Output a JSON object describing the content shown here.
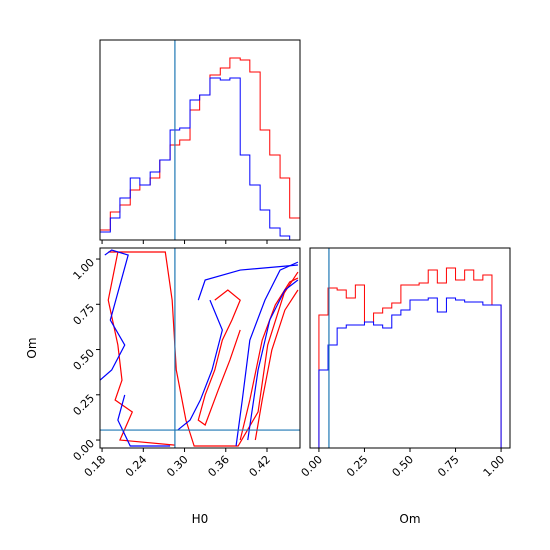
{
  "chart_data": [
    {
      "type": "histogram",
      "xlim": [
        0.177,
        0.468
      ],
      "xticks": [
        0.18,
        0.24,
        0.3,
        0.36,
        0.42
      ],
      "tick_labels": false,
      "ylim": [
        0,
        1
      ],
      "bins": [
        0.177,
        0.192,
        0.206,
        0.221,
        0.235,
        0.25,
        0.264,
        0.279,
        0.293,
        0.308,
        0.322,
        0.337,
        0.352,
        0.366,
        0.381,
        0.395,
        0.41,
        0.424,
        0.439,
        0.453,
        0.468
      ],
      "series": [
        {
          "color": "#ff0000",
          "values": [
            0.05,
            0.14,
            0.175,
            0.25,
            0.275,
            0.31,
            0.4,
            0.475,
            0.5,
            0.65,
            0.725,
            0.825,
            0.86,
            0.91,
            0.9,
            0.84,
            0.55,
            0.425,
            0.31,
            0.11
          ]
        },
        {
          "color": "#0000ff",
          "values": [
            0.04,
            0.11,
            0.21,
            0.31,
            0.275,
            0.34,
            0.4,
            0.55,
            0.56,
            0.7,
            0.725,
            0.81,
            0.8,
            0.81,
            0.425,
            0.275,
            0.15,
            0.06,
            0.02,
            0
          ]
        }
      ],
      "truth": 0.286,
      "truth_color": "#1f77b4"
    },
    {
      "type": "contour",
      "xlim": [
        0.177,
        0.468
      ],
      "ylim": [
        -0.044,
        1.061
      ],
      "xticks": [
        0.18,
        0.24,
        {
          "value": 0.3,
          "label": "0.30"
        },
        0.36,
        0.42
      ],
      "yticks": [
        {
          "value": 0,
          "label": "0.00"
        },
        0.25,
        {
          "value": 0.5,
          "label": "0.50"
        },
        0.75,
        {
          "value": 1,
          "label": "1.00"
        }
      ],
      "xlabel": "H0",
      "ylabel": "Om",
      "contours": [
        {
          "color": "#ff0000",
          "x": [
            0.189,
            0.272,
            0.282,
            0.288,
            0.302,
            0.314,
            0.378,
            0.407,
            0.421,
            0.445,
            0.465
          ],
          "y": [
            1.039,
            1.039,
            0.773,
            0.387,
            0.11,
            -0.033,
            -0.033,
            0.155,
            0.525,
            0.812,
            0.928
          ]
        },
        {
          "color": "#ff0000",
          "x": [
            0.381,
            0.395,
            0.413,
            0.432,
            0.453,
            0.465
          ],
          "y": [
            0,
            0.221,
            0.552,
            0.746,
            0.873,
            0.895
          ]
        },
        {
          "color": "#ff0000",
          "x": [
            0.403,
            0.413,
            0.427,
            0.446,
            0.465
          ],
          "y": [
            0,
            0.221,
            0.497,
            0.718,
            0.829
          ]
        },
        {
          "color": "#ff0000",
          "x": [
            0.344,
            0.363,
            0.381,
            0.369,
            0.355,
            0.344,
            0.33,
            0.32,
            0.33,
            0.349,
            0.366,
            0.381
          ],
          "y": [
            0.773,
            0.829,
            0.773,
            0.663,
            0.552,
            0.387,
            0.249,
            0.11,
            0.083,
            0.276,
            0.442,
            0.608
          ]
        },
        {
          "color": "#ff0000",
          "x": [
            0.203,
            0.189,
            0.203,
            0.209,
            0.199,
            0.224,
            0.206,
            0.286
          ],
          "y": [
            1.039,
            0.773,
            0.525,
            0.331,
            0.221,
            0.155,
            0,
            -0.028
          ]
        },
        {
          "color": "#0000ff",
          "x": [
            0.184,
            0.194,
            0.218,
            0.192,
            0.213,
            0.194,
            0.177
          ],
          "y": [
            1.022,
            1.05,
            1.022,
            0.663,
            0.525,
            0.387,
            0.331
          ]
        },
        {
          "color": "#0000ff",
          "x": [
            0.213,
            0.203,
            0.221,
            0.279
          ],
          "y": [
            0.249,
            0.11,
            -0.033,
            -0.033
          ]
        },
        {
          "color": "#0000ff",
          "x": [
            0.32,
            0.33,
            0.381,
            0.465
          ],
          "y": [
            0.773,
            0.884,
            0.939,
            0.967
          ]
        },
        {
          "color": "#0000ff",
          "x": [
            0.337,
            0.355,
            0.34,
            0.323,
            0.308,
            0.29
          ],
          "y": [
            0.773,
            0.608,
            0.387,
            0.221,
            0.11,
            0.055
          ]
        },
        {
          "color": "#0000ff",
          "x": [
            0.375,
            0.384,
            0.395,
            0.417,
            0.439,
            0.465
          ],
          "y": [
            -0.033,
            0.221,
            0.552,
            0.773,
            0.939,
            0.983
          ]
        },
        {
          "color": "#0000ff",
          "x": [
            0.392,
            0.407,
            0.424,
            0.446,
            0.465
          ],
          "y": [
            0,
            0.387,
            0.663,
            0.829,
            0.884
          ]
        }
      ],
      "truth_x": 0.286,
      "truth_y": 0.055,
      "truth_color": "#1f77b4"
    },
    {
      "type": "histogram",
      "xlim": [
        -0.049,
        1.049
      ],
      "ylim": [
        0,
        1
      ],
      "xticks": [
        {
          "value": 0,
          "label": "0.00"
        },
        0.25,
        {
          "value": 0.5,
          "label": "0.50"
        },
        0.75,
        {
          "value": 1,
          "label": "1.00"
        }
      ],
      "tick_labels": true,
      "xlabel": "Om",
      "bins": [
        0,
        0.05,
        0.1,
        0.15,
        0.2,
        0.25,
        0.3,
        0.35,
        0.4,
        0.45,
        0.5,
        0.55,
        0.6,
        0.65,
        0.7,
        0.75,
        0.8,
        0.85,
        0.9,
        0.95,
        1
      ],
      "series": [
        {
          "color": "#ff0000",
          "values": [
            0.665,
            0.8,
            0.79,
            0.75,
            0.815,
            0.63,
            0.675,
            0.7,
            0.725,
            0.815,
            0.815,
            0.825,
            0.89,
            0.825,
            0.9,
            0.84,
            0.89,
            0.84,
            0.865,
            0.715
          ]
        },
        {
          "color": "#0000ff",
          "values": [
            0.39,
            0.515,
            0.6,
            0.615,
            0.615,
            0.63,
            0.615,
            0.6,
            0.665,
            0.69,
            0.74,
            0.74,
            0.75,
            0.68,
            0.75,
            0.74,
            0.73,
            0.73,
            0.715,
            0.715
          ]
        }
      ],
      "truth": 0.055,
      "truth_color": "#1f77b4"
    }
  ]
}
